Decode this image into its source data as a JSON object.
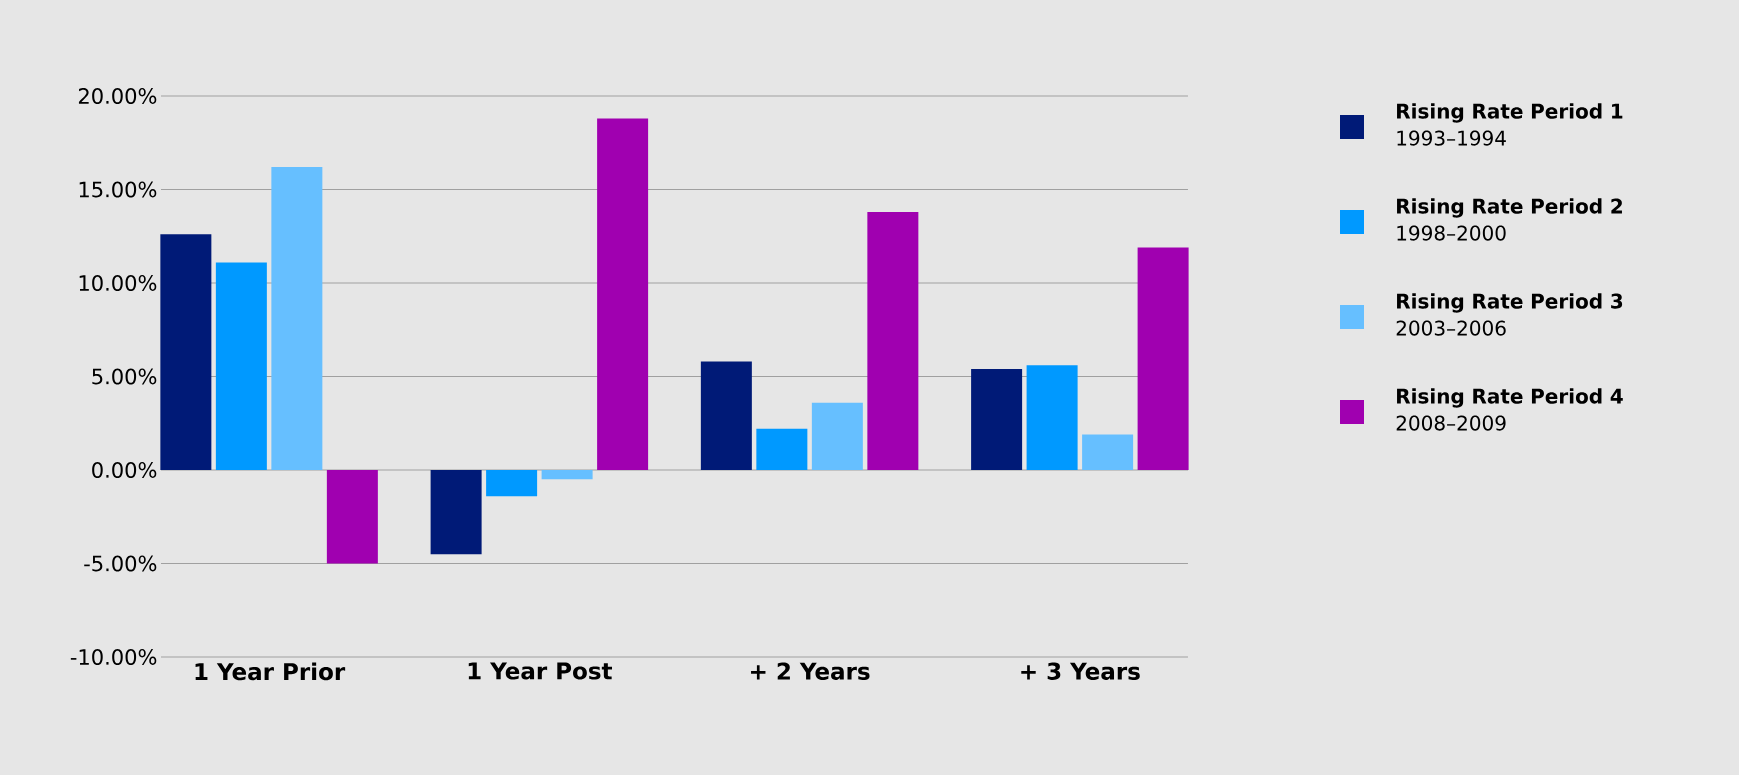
{
  "chart_data": {
    "type": "bar",
    "categories": [
      "1 Year Prior",
      "1 Year Post",
      "+ 2 Years",
      "+ 3 Years"
    ],
    "series": [
      {
        "name": "**Rising Rate Period 1** 1993–1994",
        "color": "#001a77",
        "values": [
          12.6,
          -4.5,
          5.8,
          5.4
        ]
      },
      {
        "name": "**Rising Rate Period 2** 1998–2000",
        "color": "#0099ff",
        "values": [
          11.1,
          -1.4,
          2.2,
          5.6
        ]
      },
      {
        "name": "**Rising Rate Period 3** 2003–2006",
        "color": "#66bfff",
        "values": [
          16.2,
          -0.5,
          3.6,
          1.9
        ]
      },
      {
        "name": "**Rising Rate Period 4** 2008–2009",
        "color": "#a000b0",
        "values": [
          -5.0,
          18.8,
          13.8,
          11.9
        ]
      }
    ],
    "ylim": [
      -10,
      20
    ],
    "yticks": [
      {
        "value": -10,
        "label": "-10.00%"
      },
      {
        "value": -5,
        "label": "-5.00%"
      },
      {
        "value": 0,
        "label": "0.00%"
      },
      {
        "value": 5,
        "label": "5.00%"
      },
      {
        "value": 10,
        "label": "10.00%"
      },
      {
        "value": 15,
        "label": "15.00%"
      },
      {
        "value": 20,
        "label": "20.00%"
      }
    ],
    "grid": "y",
    "legend": "right"
  }
}
